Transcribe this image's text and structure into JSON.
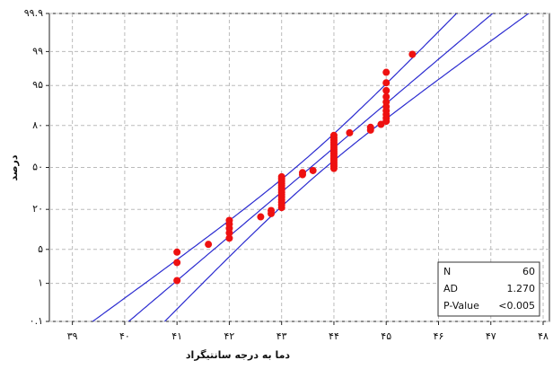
{
  "chart_data": {
    "type": "probability",
    "xlabel": "دما به درجه سانتیگراد",
    "ylabel": "درصد",
    "x": [
      41,
      41,
      41,
      41.6,
      42,
      42,
      42,
      42,
      42,
      42.6,
      42.8,
      42.8,
      43,
      43,
      43,
      43,
      43,
      43,
      43,
      43,
      43,
      43,
      43,
      43,
      43,
      43,
      43.4,
      43.4,
      43.6,
      44,
      44,
      44,
      44,
      44,
      44,
      44,
      44,
      44,
      44,
      44,
      44,
      44,
      44,
      44,
      44,
      44.3,
      44.7,
      44.7,
      44.9,
      45,
      45,
      45,
      45,
      45,
      45,
      45,
      45,
      45,
      45,
      45.5
    ],
    "values": [
      1.16,
      2.81,
      4.47,
      6.13,
      7.78,
      9.44,
      11.09,
      12.75,
      14.4,
      16.06,
      17.72,
      19.37,
      21.03,
      22.68,
      24.34,
      25.99,
      27.65,
      29.3,
      30.96,
      32.62,
      34.27,
      35.93,
      37.58,
      39.24,
      40.89,
      42.55,
      44.21,
      45.86,
      47.52,
      49.17,
      50.83,
      52.48,
      54.14,
      55.79,
      57.45,
      59.11,
      60.76,
      62.42,
      64.07,
      65.73,
      67.38,
      69.04,
      70.7,
      72.35,
      74.01,
      75.66,
      77.32,
      78.97,
      80.63,
      82.28,
      83.94,
      85.6,
      87.25,
      88.91,
      90.56,
      92.22,
      93.87,
      95.53,
      97.19,
      98.84
    ],
    "color": "#ee1111",
    "line_color": "#2b2bd0",
    "xlim": [
      38.56,
      48.12
    ],
    "xticks": [
      {
        "value": 39,
        "label": "۳۹"
      },
      {
        "value": 40,
        "label": "۴۰"
      },
      {
        "value": 41,
        "label": "۴۱"
      },
      {
        "value": 42,
        "label": "۴۲"
      },
      {
        "value": 43,
        "label": "۴۳"
      },
      {
        "value": 44,
        "label": "۴۴"
      },
      {
        "value": 45,
        "label": "۴۵"
      },
      {
        "value": 46,
        "label": "۴۶"
      },
      {
        "value": 47,
        "label": "۴۷"
      },
      {
        "value": 48,
        "label": "۴۸"
      }
    ],
    "ylim": [
      0.1,
      99.9
    ],
    "yticks": [
      {
        "value": 0.1,
        "label": "۰.۱"
      },
      {
        "value": 1,
        "label": "۱"
      },
      {
        "value": 5,
        "label": "۵"
      },
      {
        "value": 20,
        "label": "۲۰"
      },
      {
        "value": 50,
        "label": "۵۰"
      },
      {
        "value": 80,
        "label": "۸۰"
      },
      {
        "value": 95,
        "label": "۹۵"
      },
      {
        "value": 99,
        "label": "۹۹"
      },
      {
        "value": 99.9,
        "label": "۹۹.۹"
      }
    ],
    "grid": true,
    "stats": [
      {
        "label": "N",
        "value": "60"
      },
      {
        "label": "AD",
        "value": "1.270"
      },
      {
        "label": "P-Value",
        "value": "<0.005"
      }
    ]
  }
}
